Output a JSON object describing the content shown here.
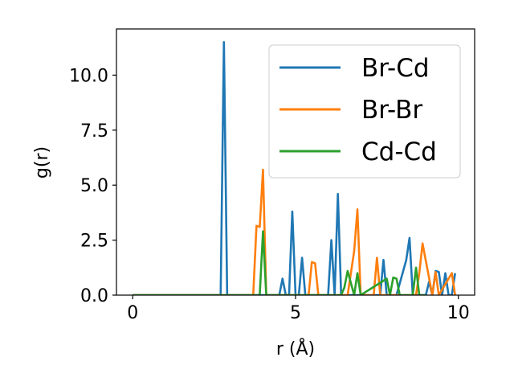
{
  "chart_data": {
    "type": "line",
    "xlabel": "r (Å)",
    "ylabel": "g(r)",
    "xlim": [
      -0.5,
      10.5
    ],
    "ylim": [
      0,
      12.1
    ],
    "x_ticks": [
      0,
      5,
      10
    ],
    "x_tick_labels": [
      "0",
      "5",
      "10"
    ],
    "y_ticks": [
      0.0,
      2.5,
      5.0,
      7.5,
      10.0
    ],
    "y_tick_labels": [
      "0.0",
      "2.5",
      "5.0",
      "7.5",
      "10.0"
    ],
    "legend_position": "upper-right",
    "grid": false,
    "series": [
      {
        "name": "Br-Cd",
        "color": "#1f77b4",
        "x": [
          0,
          2.7,
          2.8,
          2.9,
          4.5,
          4.6,
          4.7,
          4.8,
          4.9,
          5.0,
          5.1,
          5.2,
          5.3,
          6.0,
          6.1,
          6.2,
          6.3,
          6.4,
          7.6,
          7.7,
          7.8,
          8.1,
          8.4,
          8.5,
          8.6,
          8.7,
          9.0,
          9.1,
          9.2,
          9.3,
          9.4,
          9.5,
          9.6,
          9.7,
          9.8,
          9.9
        ],
        "y": [
          0,
          0,
          11.5,
          0,
          0,
          0.75,
          0,
          0,
          3.8,
          0,
          0,
          1.7,
          0,
          0,
          2.5,
          0,
          4.6,
          0,
          0,
          1.6,
          0,
          0,
          1.6,
          2.6,
          0,
          0,
          0,
          0.6,
          0,
          1.1,
          1.05,
          0,
          1.0,
          0,
          0,
          1.0
        ]
      },
      {
        "name": "Br-Br",
        "color": "#ff7f0e",
        "x": [
          0,
          3.7,
          3.8,
          3.9,
          4.0,
          4.1,
          5.4,
          5.5,
          5.6,
          5.7,
          6.6,
          6.8,
          6.9,
          7.0,
          7.4,
          7.5,
          7.6,
          8.7,
          8.8,
          8.9,
          9.2,
          9.3,
          9.4,
          9.8,
          9.9
        ],
        "y": [
          0,
          0,
          3.15,
          3.1,
          5.7,
          0,
          0,
          1.5,
          1.45,
          0,
          0,
          2.0,
          3.9,
          0,
          0,
          1.7,
          0,
          0,
          1.0,
          2.35,
          0,
          1.05,
          0,
          1.0,
          0
        ]
      },
      {
        "name": "Cd-Cd",
        "color": "#2ca02c",
        "x": [
          0,
          3.9,
          4.0,
          4.1,
          6.4,
          6.5,
          6.6,
          6.8,
          6.9,
          7.0,
          7.8,
          7.9,
          8.0,
          8.1,
          8.2,
          8.6,
          8.7,
          8.8,
          9.0
        ],
        "y": [
          0,
          0,
          2.9,
          0,
          0,
          0.35,
          1.1,
          0,
          1.0,
          0,
          0.75,
          0,
          0.8,
          0.75,
          0,
          0,
          1.25,
          0,
          0
        ]
      }
    ]
  }
}
